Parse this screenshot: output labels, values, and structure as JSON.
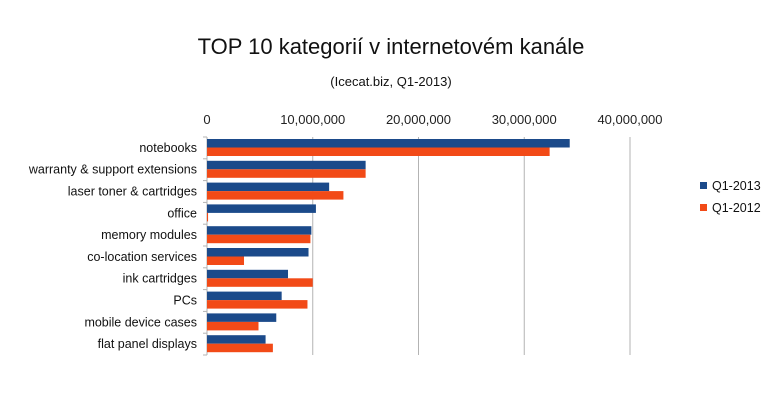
{
  "chart_data": {
    "type": "bar",
    "orientation": "horizontal",
    "title": "TOP 10 kategorií v internetovém kanále",
    "subtitle": "(Icecat.biz, Q1-2013)",
    "xlabel": "",
    "ylabel": "",
    "xlim": [
      0,
      40000000
    ],
    "xticks": [
      0,
      10000000,
      20000000,
      30000000,
      40000000
    ],
    "xtick_labels": [
      "0",
      "10,000,000",
      "20,000,000",
      "30,000,000",
      "40,000,000"
    ],
    "grid": true,
    "legend_position": "right",
    "categories": [
      "notebooks",
      "warranty & support extensions",
      "laser toner & cartridges",
      "office",
      "memory modules",
      "co-location services",
      "ink cartridges",
      "PCs",
      "mobile device cases",
      "flat panel displays"
    ],
    "series": [
      {
        "name": "Q1-2013",
        "color": "#1b4a8a",
        "values": [
          34300000,
          15000000,
          11550000,
          10300000,
          9870000,
          9600000,
          7660000,
          7060000,
          6550000,
          5540000
        ]
      },
      {
        "name": "Q1-2012",
        "color": "#f24a17",
        "values": [
          32400000,
          15000000,
          12900000,
          100000,
          9780000,
          3500000,
          10000000,
          9500000,
          4870000,
          6230000
        ]
      }
    ]
  }
}
